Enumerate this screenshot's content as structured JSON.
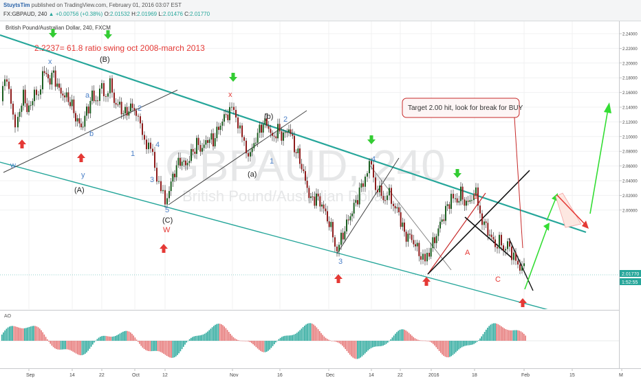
{
  "header": {
    "user": "StuytsTim",
    "published_text": "published on TradingView.com, February 01, 2016 03:07 EST",
    "symbol": "FX:GBPAUD, 240",
    "change": "+0.00756 (+0.38%)",
    "open_label": "O:",
    "open": "2.01532",
    "high_label": "H:",
    "high": "2.01969",
    "low_label": "L:",
    "low": "2.01476",
    "close_label": "C:",
    "close": "2.01770",
    "price": "2.01770"
  },
  "chart": {
    "title": "British Pound/Australian Dollar, 240, FXCM",
    "watermark_symbol": "GBPAUD, 240",
    "watermark_name": "British Pound/Australian Dollar",
    "note_red": "2.2237= 61.8 ratio swing oct 2008-march 2013",
    "callout": "Target 2.00 hit, look for break for BUY",
    "countdown": "1:52:55",
    "indicator_label": "AO"
  },
  "wave_labels": [
    {
      "text": "x",
      "color": "#4a7fc7"
    },
    {
      "text": "(B)",
      "color": "#222222"
    },
    {
      "text": "a",
      "color": "#4a7fc7"
    },
    {
      "text": "b",
      "color": "#4a7fc7"
    },
    {
      "text": "c",
      "color": "#4a7fc7"
    },
    {
      "text": "2",
      "color": "#4a7fc7"
    },
    {
      "text": "1",
      "color": "#4a7fc7"
    },
    {
      "text": "4",
      "color": "#4a7fc7"
    },
    {
      "text": "3",
      "color": "#4a7fc7"
    },
    {
      "text": "5",
      "color": "#4a7fc7"
    },
    {
      "text": "(C)",
      "color": "#222222"
    },
    {
      "text": "W",
      "color": "#e53935"
    },
    {
      "text": "w",
      "color": "#4a7fc7"
    },
    {
      "text": "y",
      "color": "#4a7fc7"
    },
    {
      "text": "(A)",
      "color": "#222222"
    },
    {
      "text": "x",
      "color": "#e53935"
    },
    {
      "text": "(b)",
      "color": "#222222"
    },
    {
      "text": "2",
      "color": "#4a7fc7"
    },
    {
      "text": "1",
      "color": "#4a7fc7"
    },
    {
      "text": "(a)",
      "color": "#222222"
    },
    {
      "text": "4",
      "color": "#4a7fc7"
    },
    {
      "text": "3",
      "color": "#4a7fc7"
    },
    {
      "text": "B",
      "color": "#e53935"
    },
    {
      "text": "A",
      "color": "#e53935"
    },
    {
      "text": "C",
      "color": "#e53935"
    }
  ],
  "chart_data": {
    "type": "candlestick",
    "symbol": "GBPAUD",
    "interval": "240",
    "ylim": [
      1.98,
      2.25
    ],
    "y_ticks": [
      "2.24000",
      "2.22000",
      "2.20000",
      "2.18000",
      "2.16000",
      "2.14000",
      "2.12000",
      "2.10000",
      "2.08000",
      "2.06000",
      "2.04000",
      "2.02000",
      "2.00000"
    ],
    "x_ticks": [
      "Sep",
      "14",
      "22",
      "Oct",
      "12",
      "Nov",
      "16",
      "Dec",
      "14",
      "22",
      "2016",
      "18",
      "Feb",
      "15",
      "M"
    ],
    "price_path": [
      {
        "x": 0,
        "y": 2.175
      },
      {
        "x": 4,
        "y": 2.19
      },
      {
        "x": 10,
        "y": 2.2
      },
      {
        "x": 16,
        "y": 2.17
      },
      {
        "x": 22,
        "y": 2.15
      },
      {
        "x": 26,
        "y": 2.16
      },
      {
        "x": 34,
        "y": 2.18
      },
      {
        "x": 42,
        "y": 2.165
      },
      {
        "x": 50,
        "y": 2.185
      },
      {
        "x": 56,
        "y": 2.175
      },
      {
        "x": 62,
        "y": 2.205
      },
      {
        "x": 70,
        "y": 2.195
      },
      {
        "x": 78,
        "y": 2.2
      },
      {
        "x": 86,
        "y": 2.185
      },
      {
        "x": 94,
        "y": 2.18
      },
      {
        "x": 102,
        "y": 2.175
      },
      {
        "x": 110,
        "y": 2.16
      },
      {
        "x": 118,
        "y": 2.15
      },
      {
        "x": 126,
        "y": 2.165
      },
      {
        "x": 134,
        "y": 2.18
      },
      {
        "x": 142,
        "y": 2.175
      },
      {
        "x": 148,
        "y": 2.19
      },
      {
        "x": 154,
        "y": 2.18
      },
      {
        "x": 160,
        "y": 2.19
      },
      {
        "x": 166,
        "y": 2.175
      },
      {
        "x": 174,
        "y": 2.17
      },
      {
        "x": 182,
        "y": 2.163
      },
      {
        "x": 190,
        "y": 2.17
      },
      {
        "x": 198,
        "y": 2.165
      },
      {
        "x": 204,
        "y": 2.15
      },
      {
        "x": 210,
        "y": 2.14
      },
      {
        "x": 216,
        "y": 2.132
      },
      {
        "x": 222,
        "y": 2.125
      },
      {
        "x": 228,
        "y": 2.105
      },
      {
        "x": 234,
        "y": 2.09
      },
      {
        "x": 240,
        "y": 2.082
      },
      {
        "x": 246,
        "y": 2.092
      },
      {
        "x": 254,
        "y": 2.11
      },
      {
        "x": 262,
        "y": 2.12
      },
      {
        "x": 270,
        "y": 2.115
      },
      {
        "x": 278,
        "y": 2.125
      },
      {
        "x": 286,
        "y": 2.135
      },
      {
        "x": 294,
        "y": 2.13
      },
      {
        "x": 302,
        "y": 2.14
      },
      {
        "x": 310,
        "y": 2.138
      },
      {
        "x": 318,
        "y": 2.15
      },
      {
        "x": 326,
        "y": 2.16
      },
      {
        "x": 334,
        "y": 2.165
      },
      {
        "x": 340,
        "y": 2.168
      },
      {
        "x": 346,
        "y": 2.155
      },
      {
        "x": 352,
        "y": 2.14
      },
      {
        "x": 358,
        "y": 2.13
      },
      {
        "x": 364,
        "y": 2.125
      },
      {
        "x": 372,
        "y": 2.14
      },
      {
        "x": 380,
        "y": 2.152
      },
      {
        "x": 388,
        "y": 2.155
      },
      {
        "x": 396,
        "y": 2.14
      },
      {
        "x": 404,
        "y": 2.148
      },
      {
        "x": 412,
        "y": 2.142
      },
      {
        "x": 420,
        "y": 2.15
      },
      {
        "x": 428,
        "y": 2.132
      },
      {
        "x": 436,
        "y": 2.12
      },
      {
        "x": 444,
        "y": 2.1
      },
      {
        "x": 452,
        "y": 2.082
      },
      {
        "x": 460,
        "y": 2.085
      },
      {
        "x": 468,
        "y": 2.078
      },
      {
        "x": 476,
        "y": 2.065
      },
      {
        "x": 484,
        "y": 2.05
      },
      {
        "x": 490,
        "y": 2.035
      },
      {
        "x": 496,
        "y": 2.045
      },
      {
        "x": 504,
        "y": 2.06
      },
      {
        "x": 512,
        "y": 2.072
      },
      {
        "x": 520,
        "y": 2.085
      },
      {
        "x": 528,
        "y": 2.1
      },
      {
        "x": 534,
        "y": 2.11
      },
      {
        "x": 540,
        "y": 2.115
      },
      {
        "x": 546,
        "y": 2.095
      },
      {
        "x": 552,
        "y": 2.09
      },
      {
        "x": 560,
        "y": 2.082
      },
      {
        "x": 566,
        "y": 2.088
      },
      {
        "x": 572,
        "y": 2.078
      },
      {
        "x": 580,
        "y": 2.07
      },
      {
        "x": 588,
        "y": 2.05
      },
      {
        "x": 596,
        "y": 2.048
      },
      {
        "x": 604,
        "y": 2.04
      },
      {
        "x": 612,
        "y": 2.03
      },
      {
        "x": 618,
        "y": 2.024
      },
      {
        "x": 624,
        "y": 2.035
      },
      {
        "x": 632,
        "y": 2.045
      },
      {
        "x": 640,
        "y": 2.06
      },
      {
        "x": 648,
        "y": 2.072
      },
      {
        "x": 656,
        "y": 2.085
      },
      {
        "x": 662,
        "y": 2.08
      },
      {
        "x": 670,
        "y": 2.088
      },
      {
        "x": 678,
        "y": 2.078
      },
      {
        "x": 686,
        "y": 2.085
      },
      {
        "x": 692,
        "y": 2.088
      },
      {
        "x": 698,
        "y": 2.07
      },
      {
        "x": 704,
        "y": 2.06
      },
      {
        "x": 712,
        "y": 2.05
      },
      {
        "x": 720,
        "y": 2.04
      },
      {
        "x": 726,
        "y": 2.045
      },
      {
        "x": 732,
        "y": 2.032
      },
      {
        "x": 738,
        "y": 2.048
      },
      {
        "x": 744,
        "y": 2.025
      },
      {
        "x": 750,
        "y": 2.03
      },
      {
        "x": 756,
        "y": 2.018
      },
      {
        "x": 762,
        "y": 2.0177
      }
    ]
  }
}
